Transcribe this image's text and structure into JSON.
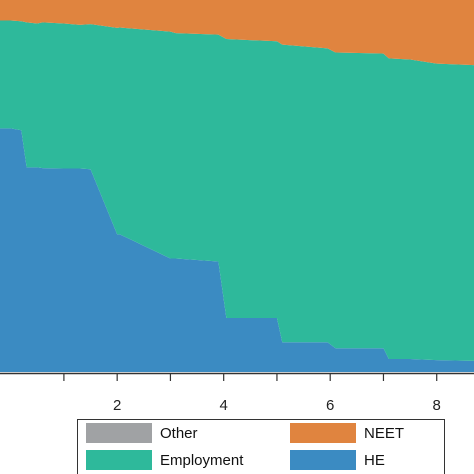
{
  "chart_data": {
    "type": "area",
    "stacked": true,
    "xlim": [
      -0.2,
      8.7
    ],
    "ylim": [
      0,
      1
    ],
    "xticks": [
      2,
      4,
      6,
      8
    ],
    "xtick_labels": [
      "2",
      "4",
      "6",
      "8"
    ],
    "grid": false,
    "legend_position": "bottom",
    "colors": {
      "HE": "#3b8bc2",
      "Employment": "#2eb99b",
      "NEET": "#e0843f",
      "Other": "#a0a2a4"
    },
    "x": [
      -0.2,
      0.0,
      0.2,
      0.3,
      0.5,
      0.6,
      1.0,
      1.3,
      1.5,
      2.0,
      2.05,
      3.0,
      3.1,
      3.9,
      4.05,
      5.0,
      5.1,
      5.95,
      6.1,
      7.0,
      7.1,
      7.5,
      8.0,
      8.7
    ],
    "series": [
      {
        "name": "HE",
        "values": [
          0.655,
          0.655,
          0.65,
          0.55,
          0.55,
          0.548,
          0.547,
          0.547,
          0.545,
          0.37,
          0.37,
          0.305,
          0.305,
          0.297,
          0.145,
          0.145,
          0.08,
          0.08,
          0.064,
          0.064,
          0.035,
          0.035,
          0.032,
          0.03
        ]
      },
      {
        "name": "Employment",
        "values": [
          0.29,
          0.29,
          0.293,
          0.39,
          0.387,
          0.392,
          0.39,
          0.386,
          0.39,
          0.555,
          0.556,
          0.61,
          0.606,
          0.61,
          0.75,
          0.744,
          0.8,
          0.79,
          0.795,
          0.792,
          0.808,
          0.805,
          0.797,
          0.795
        ]
      },
      {
        "name": "NEET",
        "values": [
          0.055,
          0.055,
          0.057,
          0.06,
          0.063,
          0.06,
          0.063,
          0.067,
          0.065,
          0.075,
          0.074,
          0.085,
          0.089,
          0.093,
          0.105,
          0.111,
          0.12,
          0.13,
          0.141,
          0.144,
          0.157,
          0.16,
          0.171,
          0.175
        ]
      },
      {
        "name": "Other",
        "values": [
          0,
          0,
          0,
          0,
          0,
          0,
          0,
          0,
          0,
          0,
          0,
          0,
          0,
          0,
          0,
          0,
          0,
          0,
          0,
          0,
          0,
          0,
          0,
          0
        ]
      }
    ],
    "legend": [
      {
        "label": "Other",
        "series": "Other"
      },
      {
        "label": "NEET",
        "series": "NEET"
      },
      {
        "label": "Employment",
        "series": "Employment"
      },
      {
        "label": "HE",
        "series": "HE"
      }
    ]
  }
}
